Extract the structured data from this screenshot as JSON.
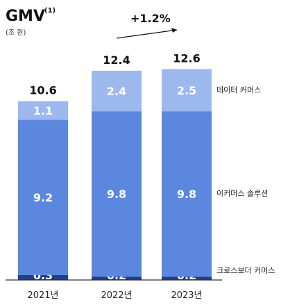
{
  "header": {
    "title": "GMV",
    "title_note": "(1)",
    "unit": "(조 원)",
    "growth_label": "+1.2%"
  },
  "chart_data": {
    "type": "bar",
    "stacked": true,
    "categories": [
      "2021년",
      "2022년",
      "2023년"
    ],
    "series": [
      {
        "name": "크로스보더 커머스",
        "values": [
          0.3,
          0.2,
          0.2
        ],
        "labels": [
          "0.3",
          "0.2",
          "0.2"
        ],
        "color": "#1f3f8f"
      },
      {
        "name": "이커머스 솔루션",
        "values": [
          9.2,
          9.8,
          9.8
        ],
        "labels": [
          "9.2",
          "9.8",
          "9.8"
        ],
        "color": "#5b87de"
      },
      {
        "name": "데이터 커머스",
        "values": [
          1.1,
          2.4,
          2.5
        ],
        "labels": [
          "1.1",
          "2.4",
          "2.5"
        ],
        "color": "#9db8ec"
      }
    ],
    "totals": [
      10.6,
      12.4,
      12.6
    ],
    "total_labels": [
      "10.6",
      "12.4",
      "12.6"
    ],
    "title": "GMV",
    "ylabel": "",
    "ylim": [
      0,
      12.6
    ],
    "grid": false,
    "legend": "right"
  }
}
